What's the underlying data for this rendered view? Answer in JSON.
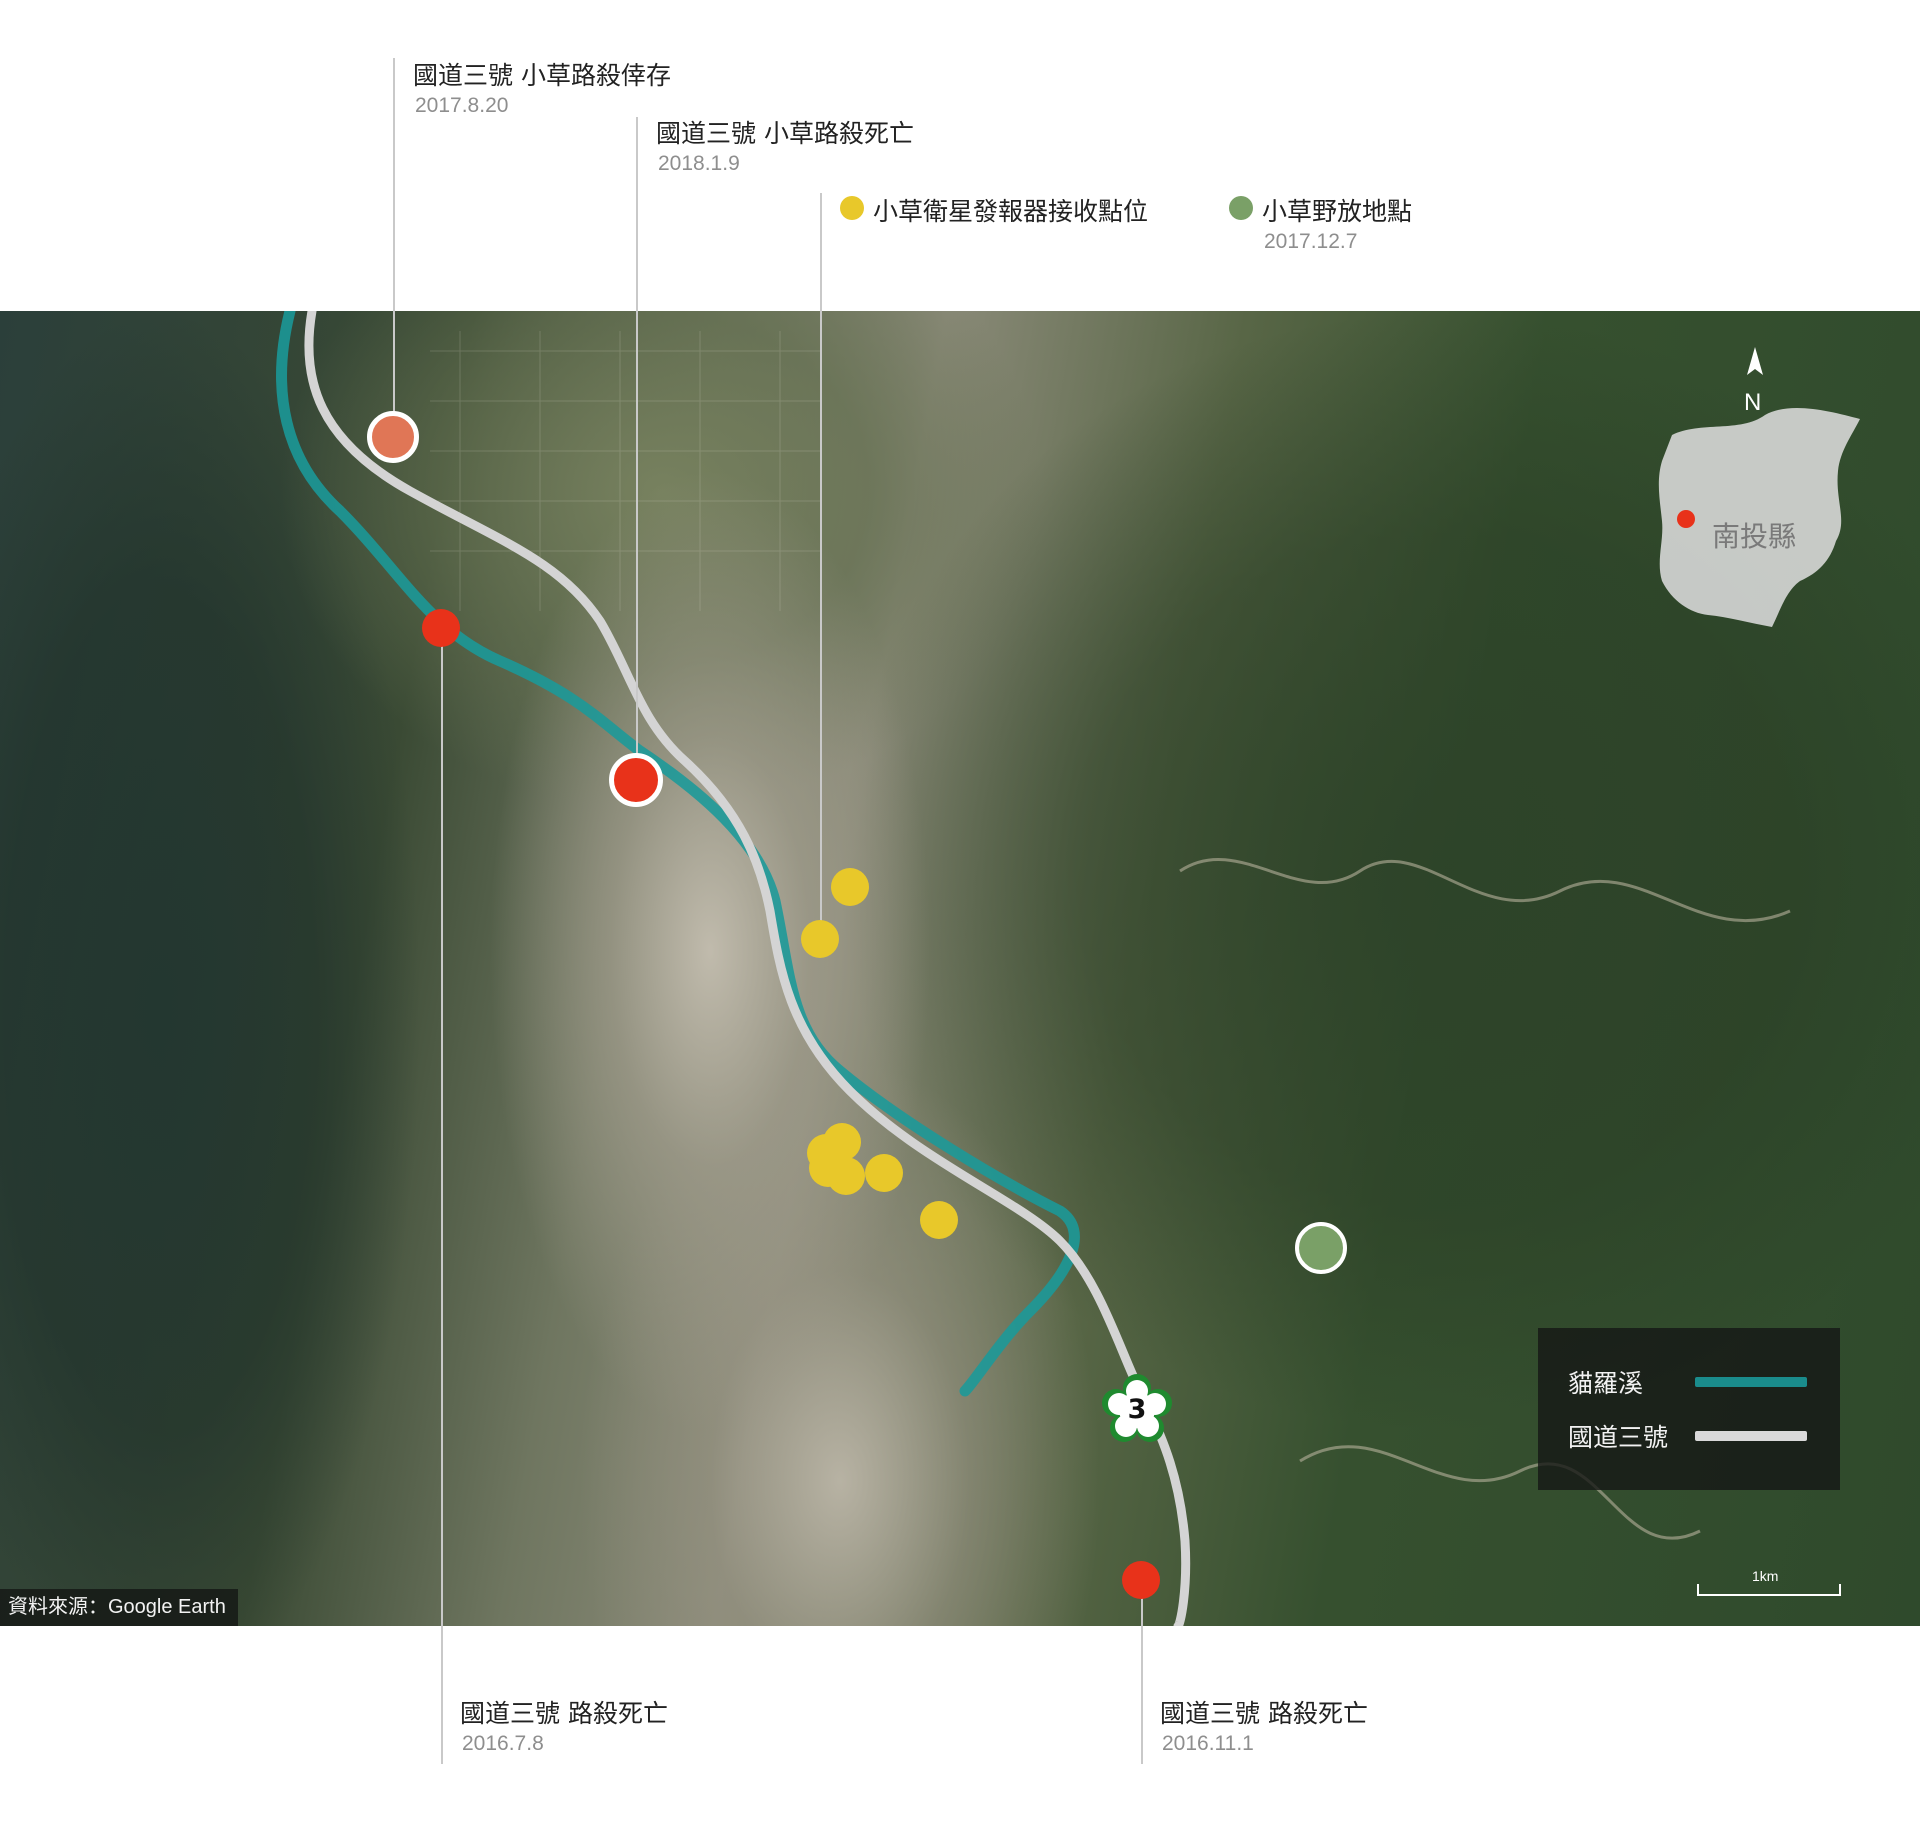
{
  "annotations": [
    {
      "id": "a1",
      "title": "國道三號 小草路殺倖存",
      "date": "2017.8.20"
    },
    {
      "id": "a2",
      "title": "國道三號 小草路殺死亡",
      "date": "2018.1.9"
    },
    {
      "id": "a3",
      "title": "國道三號 路殺死亡",
      "date": "2016.7.8"
    },
    {
      "id": "a4",
      "title": "國道三號 路殺死亡",
      "date": "2016.11.1"
    }
  ],
  "legend": {
    "satellite_label": "小草衛星發報器接收點位",
    "release_label": "小草野放地點",
    "release_date": "2017.12.7"
  },
  "map_key": {
    "river_label": "貓羅溪",
    "highway_label": "國道三號"
  },
  "inset": {
    "county_label": "南投縣"
  },
  "north_label": "N",
  "scale_label": "1km",
  "highway_shield": "3",
  "source": "資料來源：Google Earth",
  "colors": {
    "river": "#1a8c8c",
    "highway": "#d9d9d9",
    "death_marker": "#e8321a",
    "survive_marker": "#e07656",
    "satellite_point": "#e8c82a",
    "release_point": "#7aa067"
  }
}
